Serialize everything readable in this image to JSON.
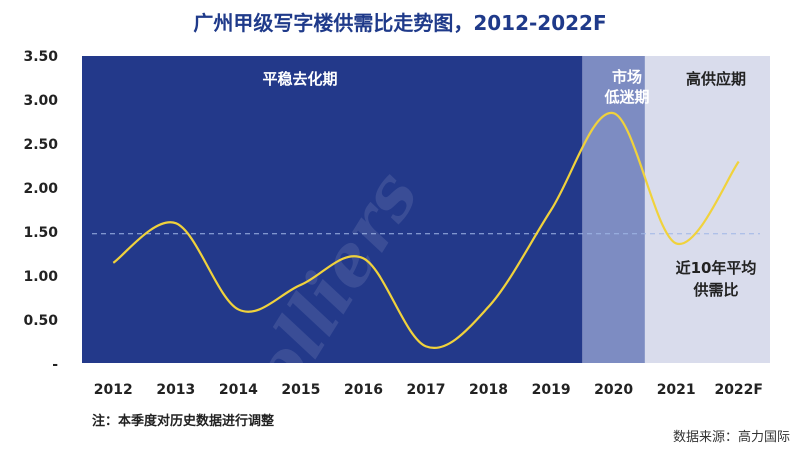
{
  "chart_data": {
    "type": "line",
    "title": "广州甲级写字楼供需比走势图，2012-2022F",
    "categories": [
      "2012",
      "2013",
      "2014",
      "2015",
      "2016",
      "2017",
      "2018",
      "2019",
      "2020",
      "2021",
      "2022F"
    ],
    "series": [
      {
        "values": [
          1.15,
          1.6,
          0.62,
          0.9,
          1.2,
          0.2,
          0.65,
          1.75,
          2.85,
          1.37,
          2.3
        ]
      }
    ],
    "reference_line": {
      "value": 1.48,
      "label": "近10年平均供需比"
    },
    "y_ticks": [
      "3.50",
      "3.00",
      "2.50",
      "2.00",
      "1.50",
      "1.00",
      "0.50",
      "-"
    ],
    "ylim": [
      0,
      3.5
    ],
    "bands": [
      {
        "label": "平稳去化期",
        "start": "2012",
        "end": "2019",
        "color": "#23398a"
      },
      {
        "label": "市场低迷期",
        "start": "2020",
        "end": "2020",
        "color": "#7d8cc2"
      },
      {
        "label": "高供应期",
        "start": "2021",
        "end": "2022F",
        "color": "#d9dcec"
      }
    ],
    "line_color": "#f0d23c",
    "reference_line_color": "#9fb6e6",
    "watermark": "Colliers",
    "grid": false
  },
  "labels": {
    "band1": "平稳去化期",
    "band2_line1": "市场",
    "band2_line2": "低迷期",
    "band3": "高供应期",
    "avg_line1": "近10年平均",
    "avg_line2": "供需比"
  },
  "footnote": "注：本季度对历史数据进行调整",
  "source": "数据来源：高力国际"
}
